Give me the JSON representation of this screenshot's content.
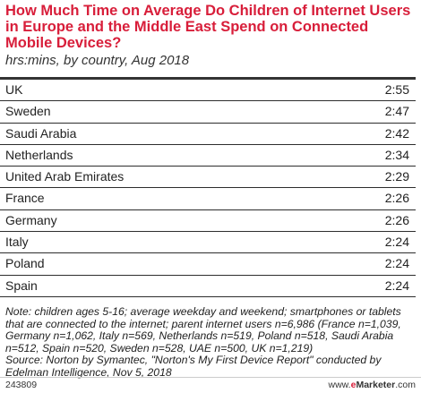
{
  "chart_data": {
    "type": "table",
    "title": "How Much Time on Average Do Children of Internet Users in Europe and the Middle East Spend on Connected Mobile Devices?",
    "subtitle": "hrs:mins, by country, Aug 2018",
    "rows": [
      {
        "country": "UK",
        "value": "2:55"
      },
      {
        "country": "Sweden",
        "value": "2:47"
      },
      {
        "country": "Saudi Arabia",
        "value": "2:42"
      },
      {
        "country": "Netherlands",
        "value": "2:34"
      },
      {
        "country": "United Arab Emirates",
        "value": "2:29"
      },
      {
        "country": "France",
        "value": "2:26"
      },
      {
        "country": "Germany",
        "value": "2:26"
      },
      {
        "country": "Italy",
        "value": "2:24"
      },
      {
        "country": "Poland",
        "value": "2:24"
      },
      {
        "country": "Spain",
        "value": "2:24"
      }
    ]
  },
  "note": "Note: children ages 5-16; average weekday and weekend; smartphones or tablets that are connected to the internet; parent internet users n=6,986 (France n=1,039, Germany n=1,062, Italy n=569, Netherlands n=519, Poland n=518, Saudi Arabia n=512, Spain n=520, Sweden n=528, UAE n=500, UK n=1,219)",
  "source": "Source: Norton by Symantec, \"Norton's My First Device Report\" conducted by Edelman Intelligence, Nov 5, 2018",
  "footer": {
    "chart_id": "243809",
    "brand_prefix": "www.",
    "brand_accent": "e",
    "brand_name": "Marketer",
    "brand_suffix": ".com"
  },
  "colors": {
    "title": "#d81e3a",
    "rule": "#333333"
  }
}
